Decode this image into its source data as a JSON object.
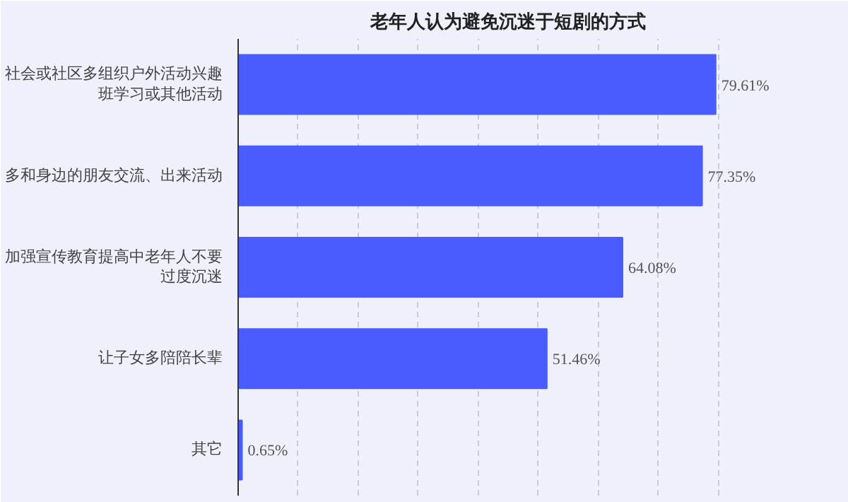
{
  "chart_data": {
    "type": "bar",
    "orientation": "horizontal",
    "title": "老年人认为避免沉迷于短剧的方式",
    "categories": [
      "社会或社区多组织户外活动兴趣班学习或其他活动",
      "多和身边的朋友交流、出来活动",
      "加强宣传教育提高中老年人不要过度沉迷",
      "让子女多陪陪长辈",
      "其它"
    ],
    "values": [
      79.61,
      77.35,
      64.08,
      51.46,
      0.65
    ],
    "value_labels": [
      "79.61%",
      "77.35%",
      "64.08%",
      "51.46%",
      "0.65%"
    ],
    "color": "#4a5cff",
    "xlim": [
      0,
      90
    ],
    "xticks": [
      {
        "value": 0,
        "label": null
      },
      {
        "value": 10,
        "label": null
      },
      {
        "value": 20,
        "label": null
      },
      {
        "value": 30,
        "label": null
      },
      {
        "value": 40,
        "label": null
      },
      {
        "value": 50,
        "label": null
      },
      {
        "value": 60,
        "label": null
      },
      {
        "value": 70,
        "label": null
      },
      {
        "value": 80,
        "label": null
      },
      {
        "value": 90,
        "label": null
      }
    ],
    "grid": "x",
    "tick_labels": "y"
  }
}
